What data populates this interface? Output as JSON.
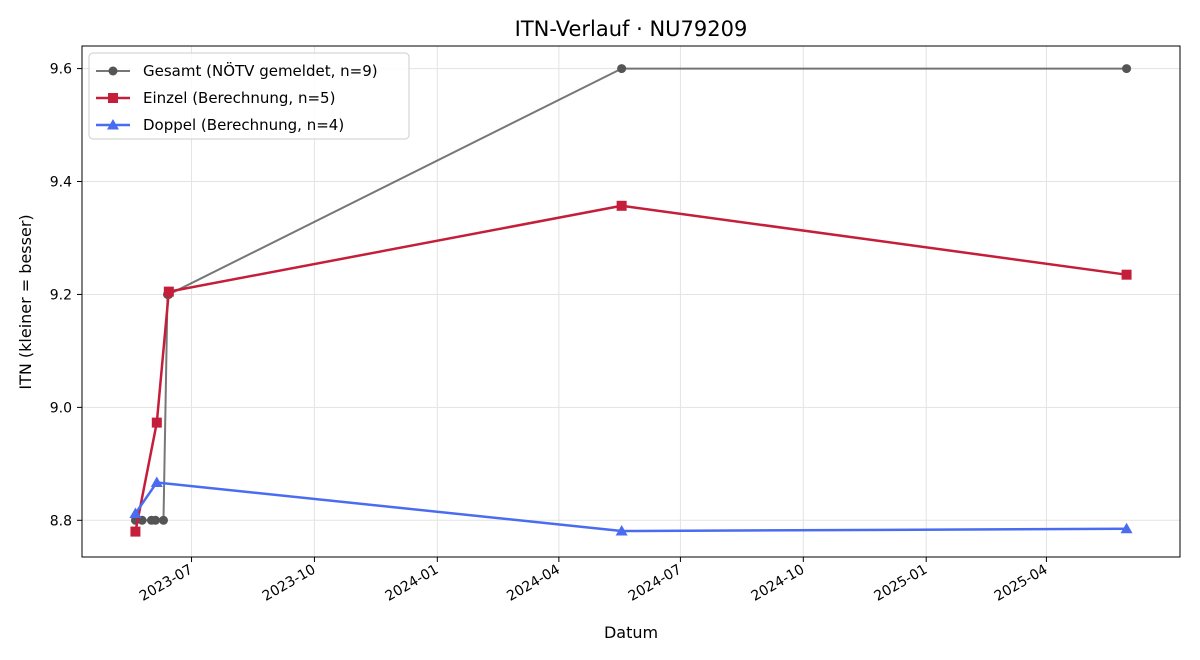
{
  "chart_data": {
    "type": "line",
    "title": "ITN-Verlauf · NU79209",
    "xlabel": "Datum",
    "ylabel": "ITN  (kleiner = besser)",
    "x_axis_kind": "date",
    "xlim": [
      "2023-04-10",
      "2025-07-10"
    ],
    "ylim": [
      8.735,
      9.64
    ],
    "grid": true,
    "legend_position": "top-left",
    "x_ticks": [
      "2023-07",
      "2023-10",
      "2024-01",
      "2024-04",
      "2024-07",
      "2024-10",
      "2025-01",
      "2025-04"
    ],
    "y_ticks": [
      8.8,
      9.0,
      9.2,
      9.4,
      9.6
    ],
    "series": [
      {
        "name": "Gesamt (NÖTV gemeldet, n=9)",
        "color": "#555555",
        "marker": "circle",
        "points": [
          {
            "x": "2023-05-20",
            "y": 8.8
          },
          {
            "x": "2023-05-25",
            "y": 8.8
          },
          {
            "x": "2023-06-01",
            "y": 8.8
          },
          {
            "x": "2023-06-04",
            "y": 8.8
          },
          {
            "x": "2023-06-10",
            "y": 8.8
          },
          {
            "x": "2023-06-13",
            "y": 9.2
          },
          {
            "x": "2023-06-14",
            "y": 9.2
          },
          {
            "x": "2024-05-18",
            "y": 9.6
          },
          {
            "x": "2025-05-31",
            "y": 9.6
          }
        ]
      },
      {
        "name": "Einzel (Berechnung, n=5)",
        "color": "#c41e3a",
        "marker": "square",
        "points": [
          {
            "x": "2023-05-20",
            "y": 8.78
          },
          {
            "x": "2023-06-05",
            "y": 8.973
          },
          {
            "x": "2023-06-14",
            "y": 9.205
          },
          {
            "x": "2024-05-18",
            "y": 9.357
          },
          {
            "x": "2025-05-31",
            "y": 9.235
          }
        ]
      },
      {
        "name": "Doppel (Berechnung, n=4)",
        "color": "#4a6cf0",
        "marker": "triangle",
        "points": [
          {
            "x": "2023-05-20",
            "y": 8.812
          },
          {
            "x": "2023-06-05",
            "y": 8.867
          },
          {
            "x": "2024-05-18",
            "y": 8.781
          },
          {
            "x": "2025-05-31",
            "y": 8.785
          }
        ]
      }
    ]
  }
}
